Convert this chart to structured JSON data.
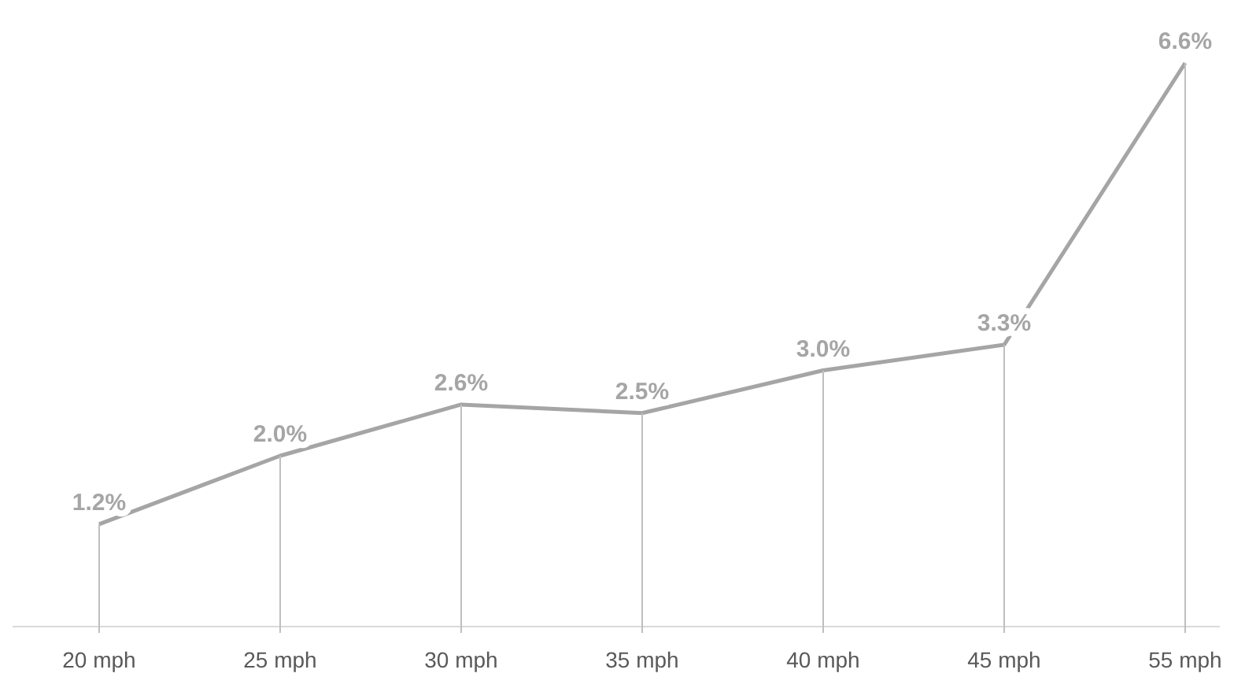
{
  "chart_data": {
    "type": "line",
    "categories": [
      "20 mph",
      "25 mph",
      "30 mph",
      "35 mph",
      "40 mph",
      "45 mph",
      "55 mph"
    ],
    "values": [
      1.2,
      2.0,
      2.6,
      2.5,
      3.0,
      3.3,
      6.6
    ],
    "value_labels": [
      "1.2%",
      "2.0%",
      "2.6%",
      "2.5%",
      "3.0%",
      "3.3%",
      "6.6%"
    ],
    "color": "#a5a5a5",
    "marker": "none",
    "line_style": "solid",
    "tick_labels": "x"
  }
}
